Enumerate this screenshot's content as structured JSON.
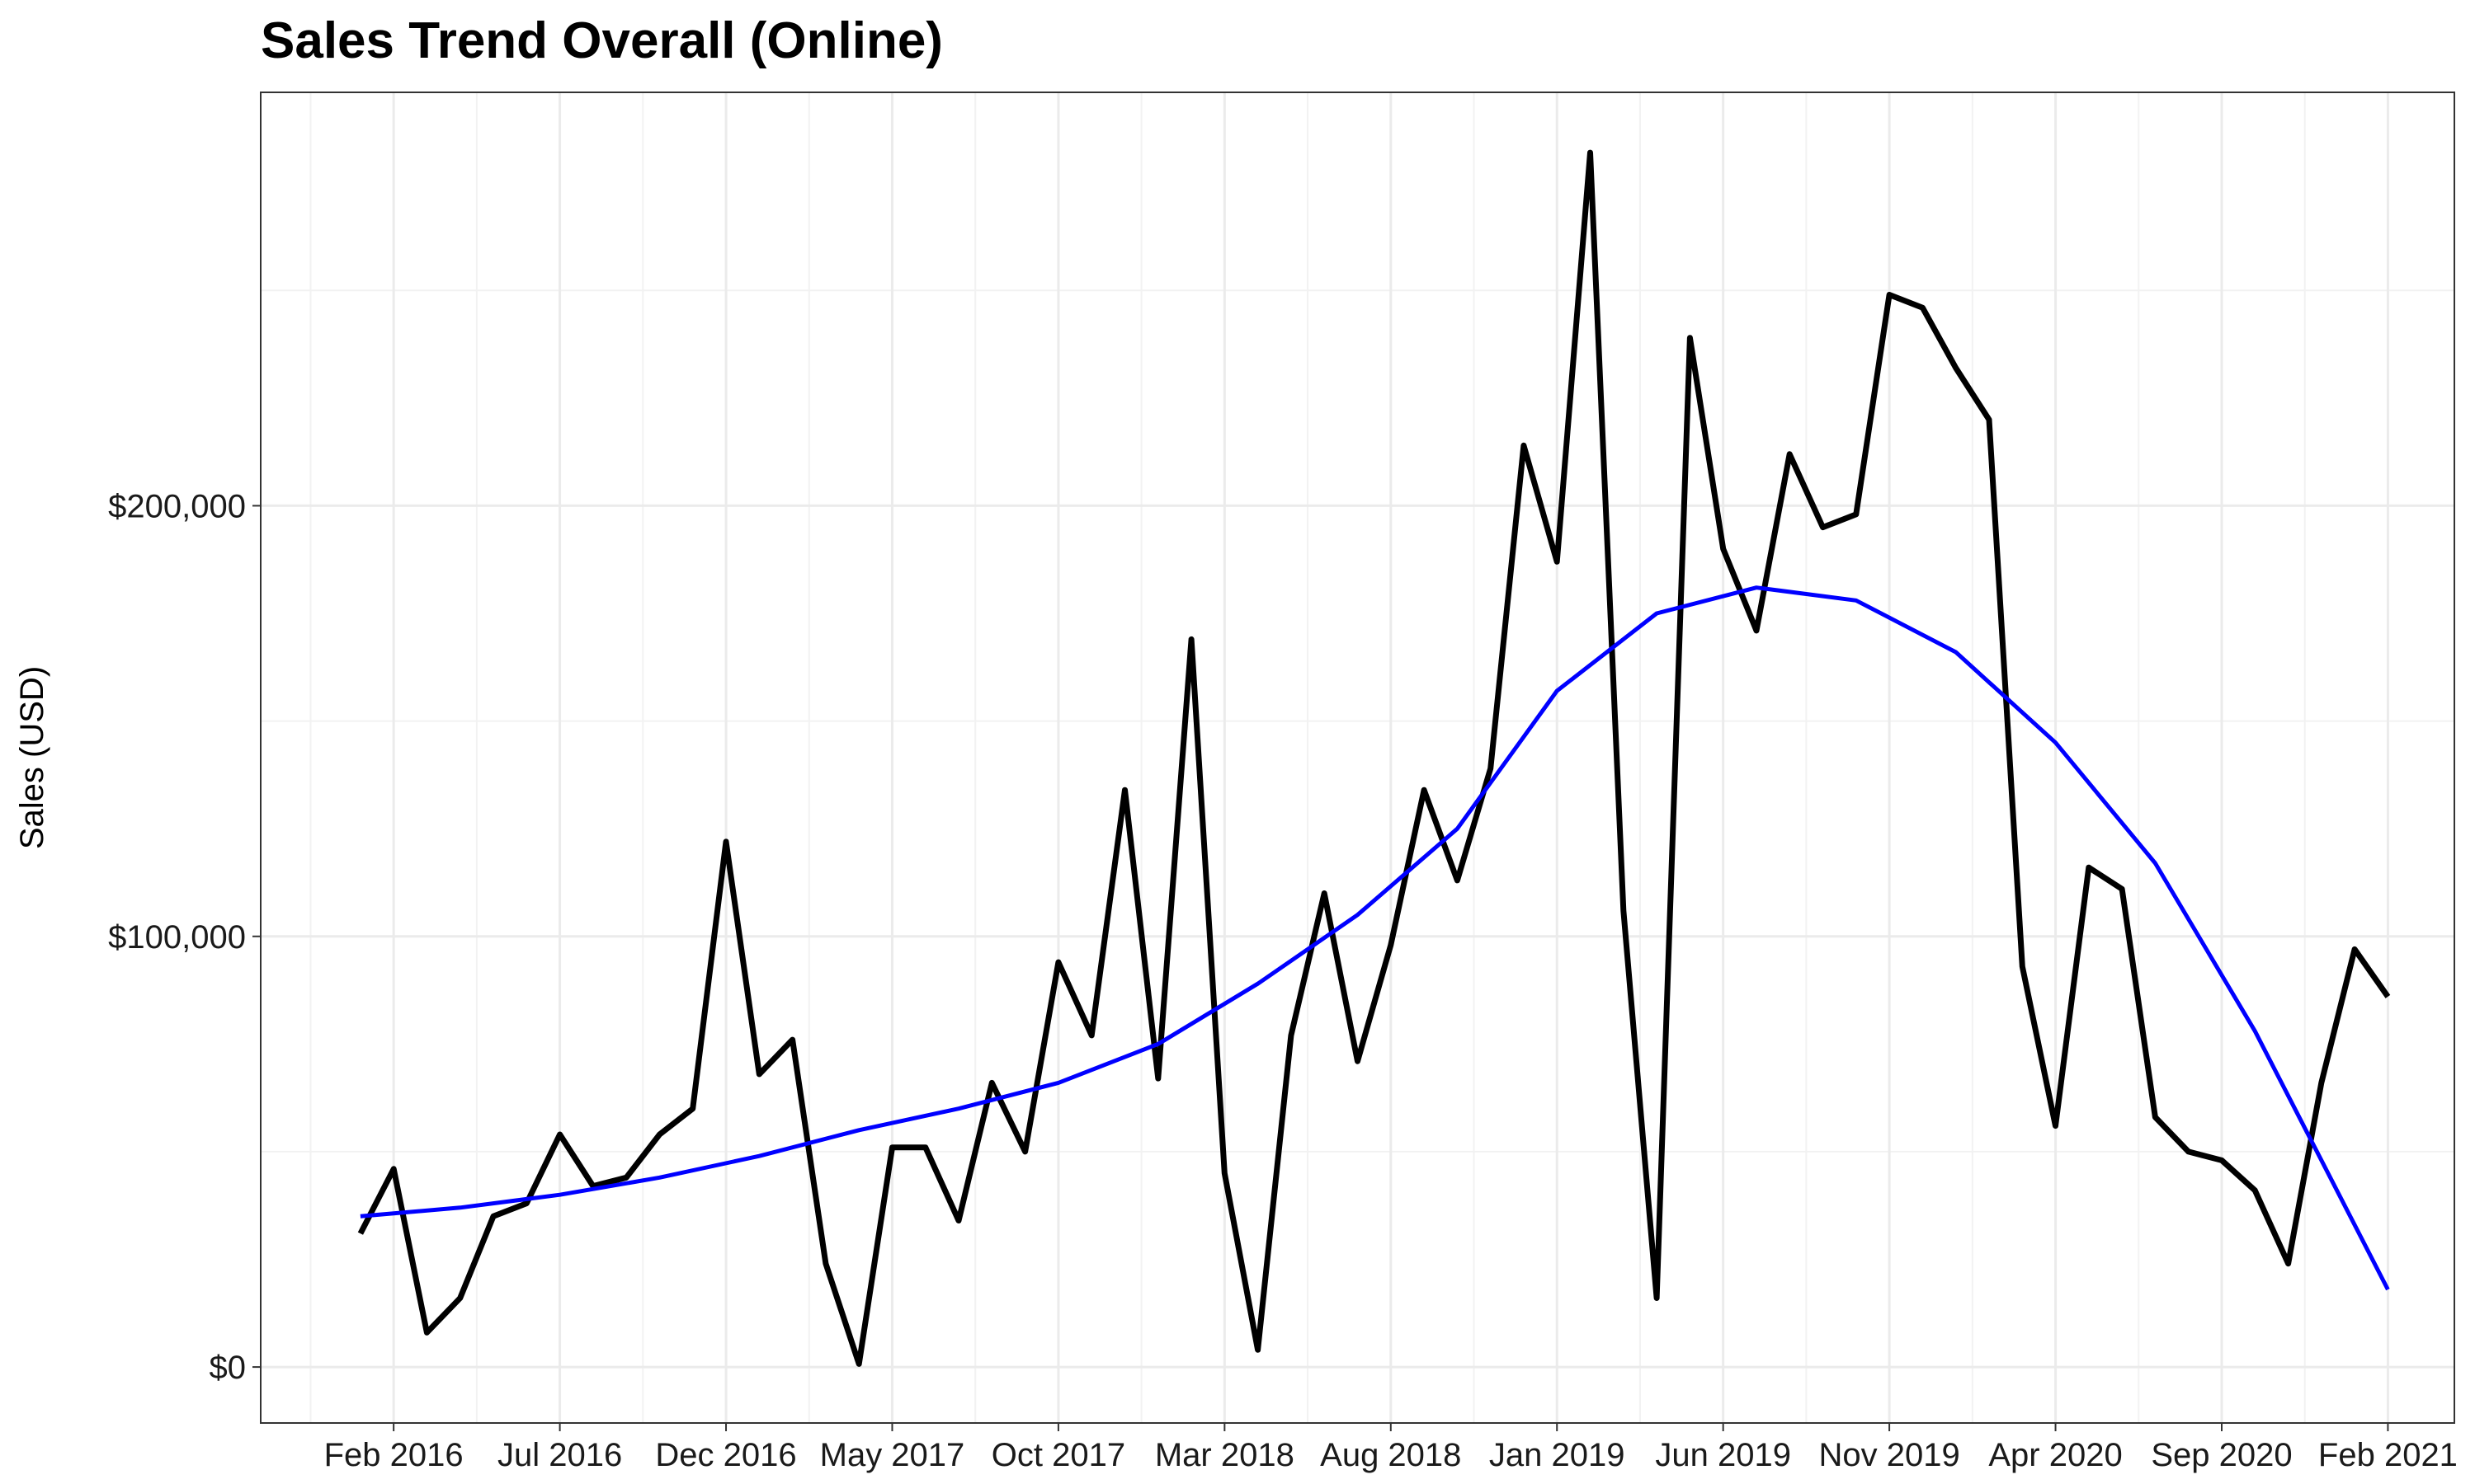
{
  "chart_data": {
    "type": "line",
    "title": "Sales Trend Overall (Online)",
    "xlabel": "",
    "ylabel": "Sales (USD)",
    "y_tick_labels": [
      "$0",
      "$100,000",
      "$200,000"
    ],
    "y_tick_values": [
      0,
      100000,
      200000
    ],
    "ylim": [
      -13000,
      296000
    ],
    "x_tick_labels": [
      "Feb 2016",
      "Jul 2016",
      "Dec 2016",
      "May 2017",
      "Oct 2017",
      "Mar 2018",
      "Aug 2018",
      "Jan 2019",
      "Jun 2019",
      "Nov 2019",
      "Apr 2020",
      "Sep 2020",
      "Feb 2021"
    ],
    "x_tick_dates": [
      "2016-02",
      "2016-07",
      "2016-12",
      "2017-05",
      "2017-10",
      "2018-03",
      "2018-08",
      "2019-01",
      "2019-06",
      "2019-11",
      "2020-04",
      "2020-09",
      "2021-02"
    ],
    "xlim": [
      "2015-10",
      "2021-04"
    ],
    "grid": true,
    "series": [
      {
        "color": "#000000",
        "x": [
          "2016-01",
          "2016-02",
          "2016-03",
          "2016-04",
          "2016-05",
          "2016-06",
          "2016-07",
          "2016-08",
          "2016-09",
          "2016-10",
          "2016-11",
          "2016-12",
          "2017-01",
          "2017-02",
          "2017-03",
          "2017-04",
          "2017-05",
          "2017-06",
          "2017-07",
          "2017-08",
          "2017-09",
          "2017-10",
          "2017-11",
          "2017-12",
          "2018-01",
          "2018-02",
          "2018-03",
          "2018-04",
          "2018-05",
          "2018-06",
          "2018-07",
          "2018-08",
          "2018-09",
          "2018-10",
          "2018-11",
          "2018-12",
          "2019-01",
          "2019-02",
          "2019-03",
          "2019-04",
          "2019-05",
          "2019-06",
          "2019-07",
          "2019-08",
          "2019-09",
          "2019-10",
          "2019-11",
          "2019-12",
          "2020-01",
          "2020-02",
          "2020-03",
          "2020-04",
          "2020-05",
          "2020-06",
          "2020-07",
          "2020-08",
          "2020-09",
          "2020-10",
          "2020-11",
          "2020-12",
          "2021-01",
          "2021-02"
        ],
        "values": [
          31000,
          46000,
          8000,
          16000,
          35000,
          38000,
          54000,
          42000,
          44000,
          54000,
          60000,
          122000,
          68000,
          76000,
          24000,
          700,
          51000,
          51000,
          34000,
          66000,
          50000,
          94000,
          77000,
          134000,
          67000,
          169000,
          45000,
          4000,
          77000,
          110000,
          71000,
          98000,
          134000,
          113000,
          139000,
          214000,
          187000,
          282000,
          106000,
          16000,
          239000,
          190000,
          171000,
          212000,
          195000,
          198000,
          249000,
          246000,
          232000,
          220000,
          93000,
          56000,
          116000,
          111000,
          58000,
          50000,
          48000,
          41000,
          24000,
          66000,
          97000,
          86000
        ]
      },
      {
        "color": "#0000ff",
        "x": [
          "2016-01",
          "2016-04",
          "2016-07",
          "2016-10",
          "2017-01",
          "2017-04",
          "2017-07",
          "2017-10",
          "2018-01",
          "2018-04",
          "2018-07",
          "2018-10",
          "2019-01",
          "2019-04",
          "2019-07",
          "2019-10",
          "2020-01",
          "2020-04",
          "2020-07",
          "2020-10",
          "2021-02"
        ],
        "values": [
          35000,
          37000,
          40000,
          44000,
          49000,
          55000,
          60000,
          66000,
          75000,
          89000,
          105000,
          125000,
          157000,
          175000,
          181000,
          178000,
          166000,
          145000,
          117000,
          78000,
          18000
        ]
      }
    ]
  }
}
